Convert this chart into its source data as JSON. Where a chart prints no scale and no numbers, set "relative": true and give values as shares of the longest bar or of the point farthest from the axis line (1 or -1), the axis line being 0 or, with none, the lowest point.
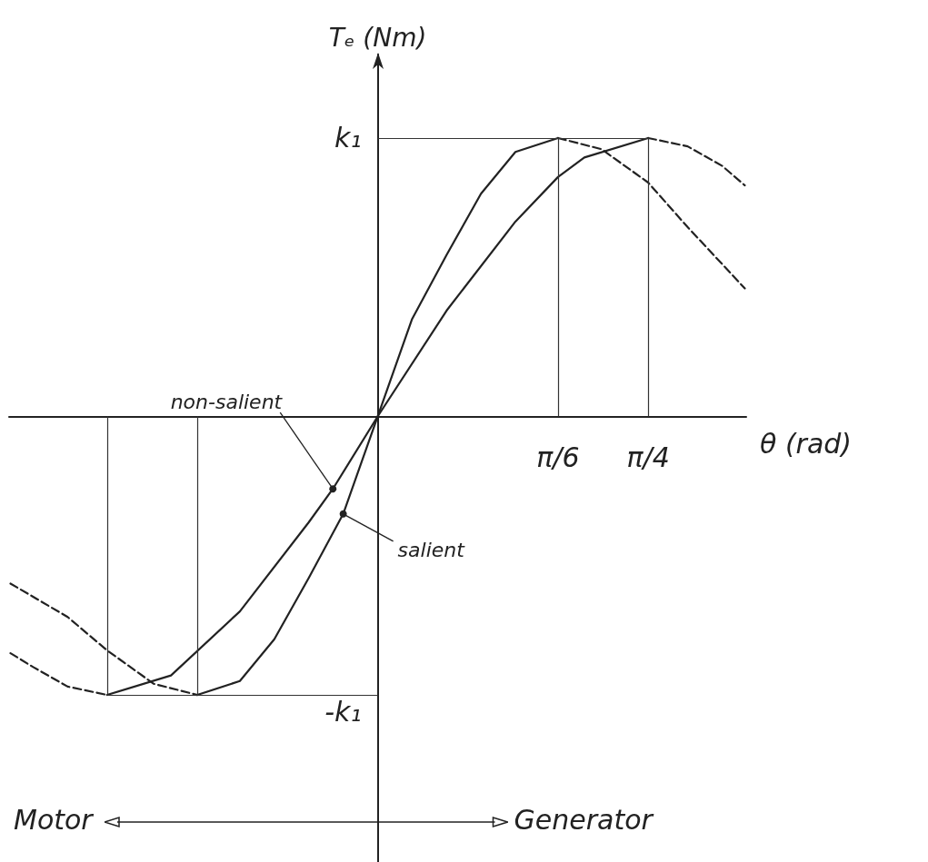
{
  "chart_data": {
    "type": "line",
    "xlabel": "θ (rad)",
    "ylabel": "Tₑ (Nm)",
    "xlim": [
      -1.07,
      1.07
    ],
    "relative": true,
    "xticks": [
      {
        "value": 0.5236,
        "label": "π/6"
      },
      {
        "value": 0.7854,
        "label": "π/4"
      }
    ],
    "marker": "none",
    "series": [
      {
        "color": "#222222",
        "line_style": "solid",
        "x": [
          -0.7854,
          -0.6,
          -0.4,
          -0.2,
          -0.13,
          0,
          0.2,
          0.4,
          0.5236,
          0.6,
          0.7854
        ],
        "values": [
          -1,
          -0.93,
          -0.7,
          -0.38,
          -0.26,
          0,
          0.38,
          0.7,
          0.86,
          0.93,
          1
        ]
      },
      {
        "color": "#222222",
        "line_style": "dashed",
        "x": [
          0.7854,
          0.9,
          1.0,
          1.066
        ],
        "values": [
          1,
          0.97,
          0.9,
          0.83
        ]
      },
      {
        "color": "#222222",
        "line_style": "dashed",
        "x": [
          -1.066,
          -1.0,
          -0.9,
          -0.7854
        ],
        "values": [
          -0.85,
          -0.9,
          -0.97,
          -1
        ]
      },
      {
        "color": "#222222",
        "line_style": "solid",
        "x": [
          -0.5236,
          -0.4,
          -0.3,
          -0.2,
          -0.1,
          0,
          0.1,
          0.2,
          0.3,
          0.4,
          0.5236
        ],
        "values": [
          -1,
          -0.95,
          -0.8,
          -0.58,
          -0.35,
          0,
          0.35,
          0.58,
          0.8,
          0.95,
          1
        ]
      },
      {
        "color": "#222222",
        "line_style": "dashed",
        "x": [
          0.5236,
          0.65,
          0.7854,
          0.9,
          1.066
        ],
        "values": [
          1,
          0.96,
          0.84,
          0.68,
          0.46
        ]
      },
      {
        "color": "#222222",
        "line_style": "dashed",
        "x": [
          -1.066,
          -0.9,
          -0.7854,
          -0.65,
          -0.5236
        ],
        "values": [
          -0.6,
          -0.72,
          -0.84,
          -0.96,
          -1
        ]
      }
    ],
    "ref_lines": [
      {
        "axis": "x",
        "value": 0.5236
      },
      {
        "axis": "x",
        "value": 0.7854
      },
      {
        "axis": "x",
        "value": -0.5236
      },
      {
        "axis": "x",
        "value": -0.7854
      },
      {
        "axis": "y",
        "value": 1
      },
      {
        "axis": "y",
        "value": -1
      }
    ],
    "annotations": [
      {
        "text": "k₁",
        "x": 0,
        "y": 1
      },
      {
        "text": "-k₁",
        "x": 0,
        "y": -1
      },
      {
        "text": "non-salient",
        "x": -0.13,
        "y": -0.26
      },
      {
        "text": "salient",
        "x": -0.1,
        "y": -0.35
      },
      "Motor",
      "Generator"
    ]
  }
}
